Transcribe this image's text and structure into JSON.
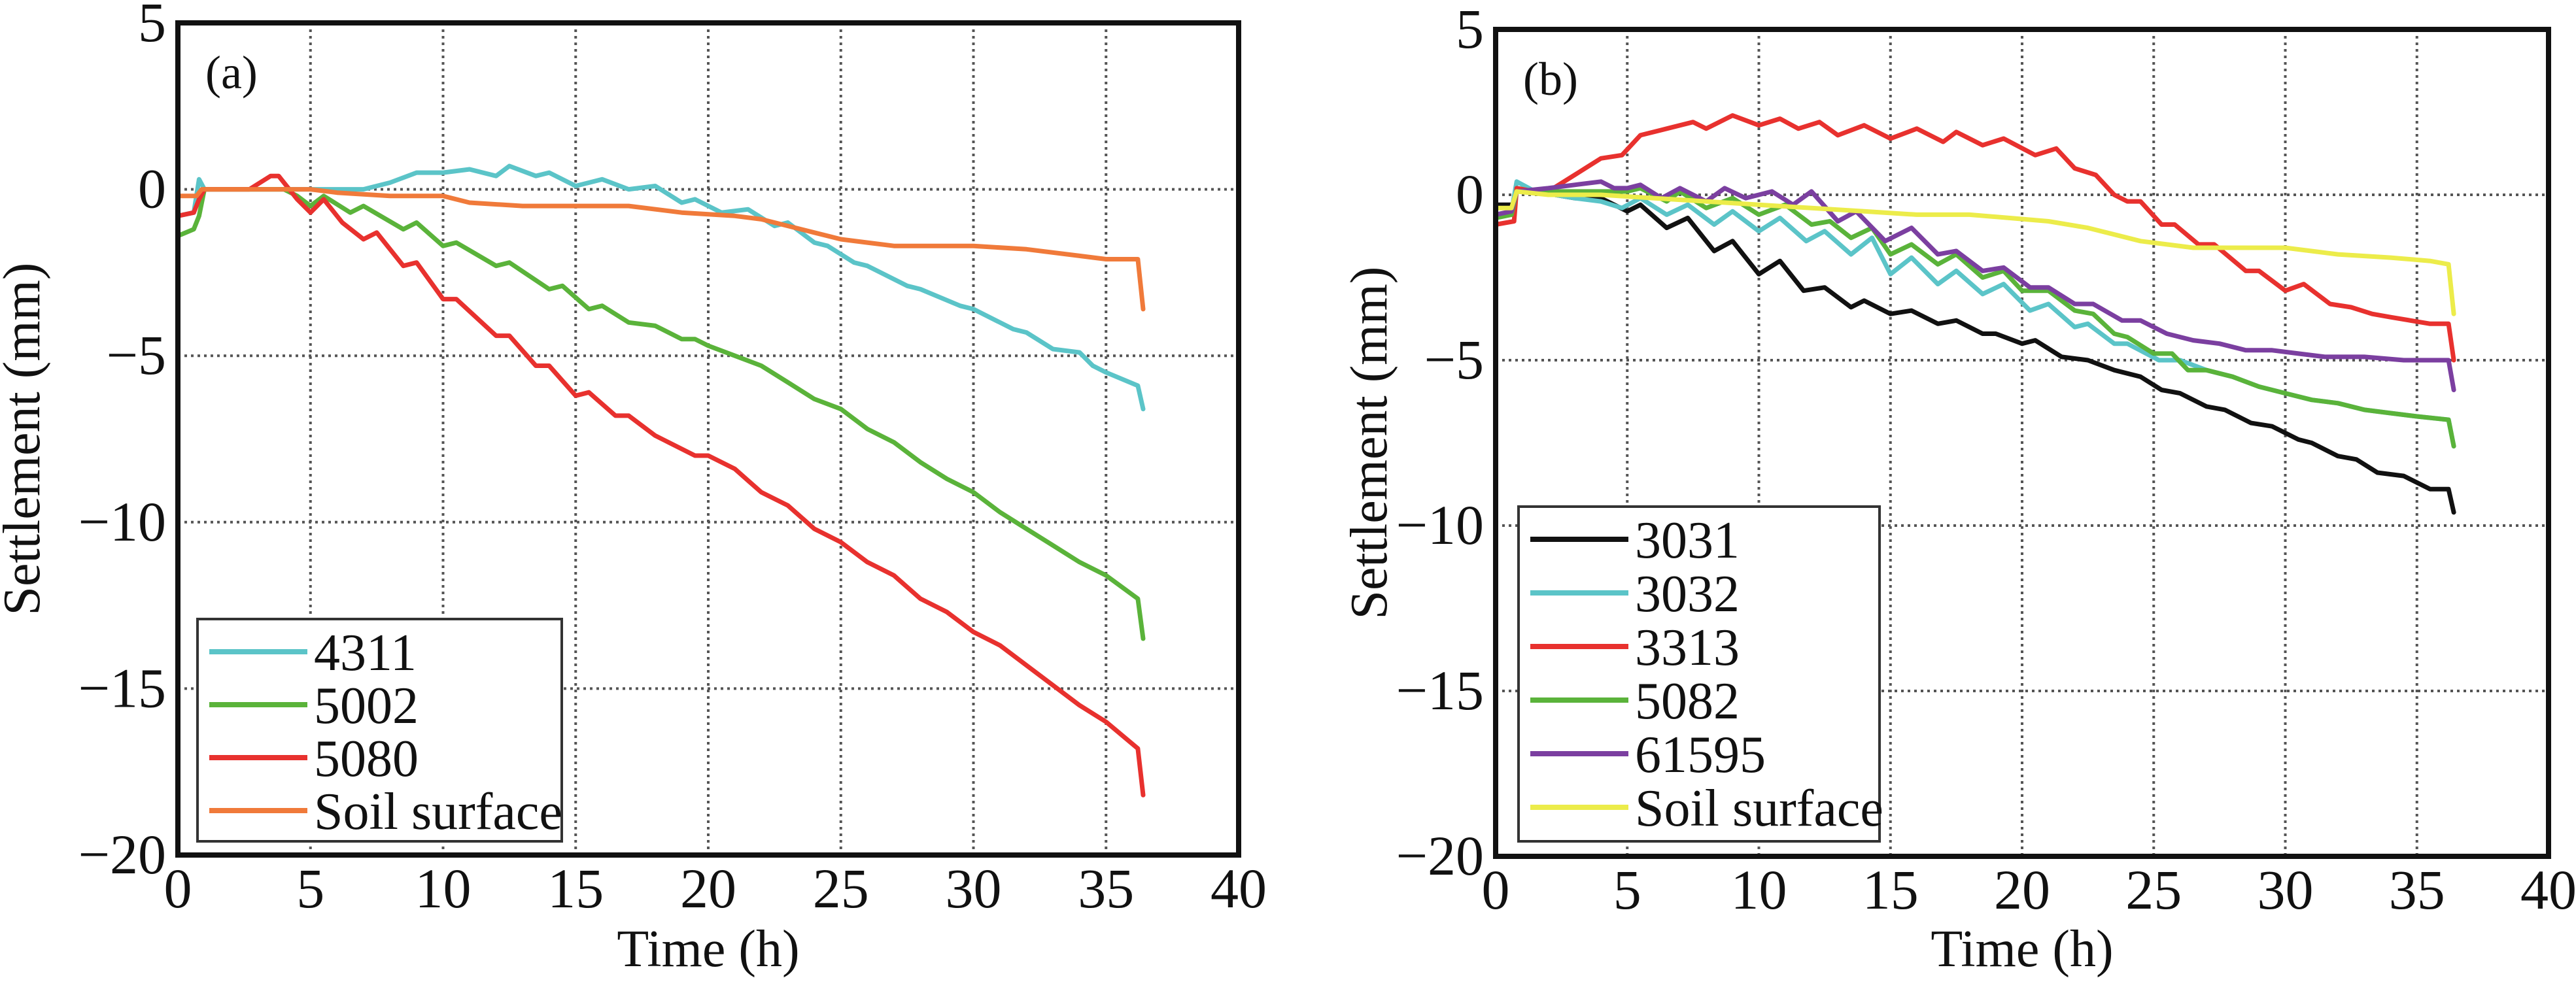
{
  "chart_data": [
    {
      "type": "line",
      "panel_label": "(a)",
      "title": "",
      "xlabel": "Time (h)",
      "ylabel": "Settlement (mm)",
      "xlim": [
        0,
        40
      ],
      "ylim": [
        -20,
        5
      ],
      "xticks": [
        0,
        5,
        10,
        15,
        20,
        25,
        30,
        35,
        40
      ],
      "yticks": [
        5,
        0,
        -5,
        -10,
        -15,
        -20
      ],
      "ytick_labels": [
        "5",
        "0",
        "−5",
        "−10",
        "−15",
        "−20"
      ],
      "grid": true,
      "legend_position": "bottom-left",
      "series": [
        {
          "name": "4311",
          "color": "#5bc4c8",
          "x": [
            0,
            0.6,
            0.8,
            1,
            4,
            7,
            8,
            9,
            10,
            11,
            12,
            12.5,
            13.5,
            14,
            15,
            16,
            17,
            18,
            19,
            19.5,
            20.5,
            21.5,
            22.5,
            23,
            24,
            24.5,
            25.5,
            26,
            27.5,
            28,
            29.5,
            30,
            31.5,
            32,
            33,
            34,
            34.5,
            35,
            36.2,
            36.4
          ],
          "y": [
            -0.8,
            -0.7,
            0.3,
            0,
            0,
            0,
            0.2,
            0.5,
            0.5,
            0.6,
            0.4,
            0.7,
            0.4,
            0.5,
            0.1,
            0.3,
            0,
            0.1,
            -0.4,
            -0.3,
            -0.7,
            -0.6,
            -1.1,
            -1.0,
            -1.6,
            -1.7,
            -2.2,
            -2.3,
            -2.9,
            -3.0,
            -3.5,
            -3.6,
            -4.2,
            -4.3,
            -4.8,
            -4.9,
            -5.3,
            -5.5,
            -5.9,
            -6.6
          ]
        },
        {
          "name": "5002",
          "color": "#5ab33a",
          "x": [
            0,
            0.6,
            0.8,
            1,
            4,
            4.5,
            5,
            5.5,
            6.5,
            7,
            8.5,
            9,
            10,
            10.5,
            12,
            12.5,
            14,
            14.5,
            15.5,
            16,
            17,
            18,
            19,
            19.5,
            20,
            21,
            22,
            23,
            24,
            25,
            26,
            27,
            28,
            29,
            30,
            31,
            32,
            33,
            34,
            35,
            36.2,
            36.4
          ],
          "y": [
            -1.4,
            -1.2,
            -0.8,
            0,
            0,
            -0.2,
            -0.5,
            -0.2,
            -0.7,
            -0.5,
            -1.2,
            -1.0,
            -1.7,
            -1.6,
            -2.3,
            -2.2,
            -3.0,
            -2.9,
            -3.6,
            -3.5,
            -4.0,
            -4.1,
            -4.5,
            -4.5,
            -4.7,
            -5.0,
            -5.3,
            -5.8,
            -6.3,
            -6.6,
            -7.2,
            -7.6,
            -8.2,
            -8.7,
            -9.1,
            -9.7,
            -10.2,
            -10.7,
            -11.2,
            -11.6,
            -12.3,
            -13.5
          ]
        },
        {
          "name": "5080",
          "color": "#e8312e",
          "x": [
            0,
            0.6,
            0.8,
            1,
            2.7,
            3.5,
            3.8,
            4.5,
            5,
            5.5,
            6.2,
            7,
            7.5,
            8.5,
            9,
            10,
            10.5,
            12,
            12.5,
            13.5,
            14,
            15,
            15.5,
            16.5,
            17,
            18,
            18.5,
            19.5,
            20,
            21,
            22,
            23,
            24,
            25,
            26,
            27,
            28,
            29,
            30,
            31,
            32,
            33,
            34,
            35,
            36.2,
            36.4
          ],
          "y": [
            -0.8,
            -0.7,
            -0.3,
            0,
            0,
            0.4,
            0.4,
            -0.3,
            -0.7,
            -0.3,
            -1.0,
            -1.5,
            -1.3,
            -2.3,
            -2.2,
            -3.3,
            -3.3,
            -4.4,
            -4.4,
            -5.3,
            -5.3,
            -6.2,
            -6.1,
            -6.8,
            -6.8,
            -7.4,
            -7.6,
            -8.0,
            -8.0,
            -8.4,
            -9.1,
            -9.5,
            -10.2,
            -10.6,
            -11.2,
            -11.6,
            -12.3,
            -12.7,
            -13.3,
            -13.7,
            -14.3,
            -14.9,
            -15.5,
            -16.0,
            -16.8,
            -18.2
          ]
        },
        {
          "name": "Soil surface",
          "color": "#f07a3a",
          "x": [
            0,
            0.7,
            0.9,
            5,
            6,
            8,
            10,
            11,
            13,
            15,
            17,
            19,
            21,
            22,
            23,
            24,
            25,
            26,
            27,
            28,
            30,
            32,
            34,
            35,
            36.2,
            36.4
          ],
          "y": [
            -0.2,
            -0.2,
            0,
            0,
            -0.1,
            -0.2,
            -0.2,
            -0.4,
            -0.5,
            -0.5,
            -0.5,
            -0.7,
            -0.8,
            -0.9,
            -1.1,
            -1.3,
            -1.5,
            -1.6,
            -1.7,
            -1.7,
            -1.7,
            -1.8,
            -2.0,
            -2.1,
            -2.1,
            -3.6
          ]
        }
      ]
    },
    {
      "type": "line",
      "panel_label": "(b)",
      "title": "",
      "xlabel": "Time (h)",
      "ylabel": "Settlement (mm)",
      "xlim": [
        0,
        40
      ],
      "ylim": [
        -20,
        5
      ],
      "xticks": [
        0,
        5,
        10,
        15,
        20,
        25,
        30,
        35,
        40
      ],
      "yticks": [
        5,
        0,
        -5,
        -10,
        -15,
        -20
      ],
      "ytick_labels": [
        "5",
        "0",
        "−5",
        "−10",
        "−15",
        "−20"
      ],
      "grid": true,
      "legend_position": "bottom-left",
      "series": [
        {
          "name": "3031",
          "color": "#111111",
          "x": [
            0,
            0.7,
            0.8,
            1.5,
            3,
            4,
            5,
            5.5,
            6.5,
            7.3,
            8.3,
            9,
            10,
            10.8,
            11.7,
            12.5,
            13.5,
            14,
            15,
            15.8,
            16.8,
            17.5,
            18.5,
            19,
            20,
            20.5,
            21.5,
            22.5,
            23.5,
            24.5,
            25.3,
            26,
            27,
            27.7,
            28.7,
            29.5,
            30.5,
            31,
            32,
            32.7,
            33.5,
            34.5,
            35.5,
            36.2,
            36.4
          ],
          "y": [
            -0.3,
            -0.3,
            0.2,
            0.1,
            -0.1,
            -0.1,
            -0.5,
            -0.3,
            -1.0,
            -0.7,
            -1.7,
            -1.4,
            -2.4,
            -2.0,
            -2.9,
            -2.8,
            -3.4,
            -3.2,
            -3.6,
            -3.5,
            -3.9,
            -3.8,
            -4.2,
            -4.2,
            -4.5,
            -4.4,
            -4.9,
            -5.0,
            -5.3,
            -5.5,
            -5.9,
            -6.0,
            -6.4,
            -6.5,
            -6.9,
            -7.0,
            -7.4,
            -7.5,
            -7.9,
            -8.0,
            -8.4,
            -8.5,
            -8.9,
            -8.9,
            -9.6
          ]
        },
        {
          "name": "3032",
          "color": "#5bc4c8",
          "x": [
            0,
            0.6,
            0.8,
            1.5,
            3,
            4,
            4.8,
            5.5,
            6.5,
            7.3,
            8.3,
            9,
            10,
            10.8,
            11.8,
            12.5,
            13.5,
            14.3,
            15,
            15.8,
            16.8,
            17.5,
            18.5,
            19.3,
            20.3,
            21,
            22,
            22.5,
            23.5,
            24,
            25.2,
            26,
            27,
            28,
            29,
            30,
            31,
            32,
            33,
            34,
            35,
            36.2,
            36.4
          ],
          "y": [
            -0.6,
            -0.5,
            0.4,
            0.1,
            -0.1,
            -0.2,
            -0.4,
            -0.1,
            -0.6,
            -0.3,
            -0.9,
            -0.5,
            -1.1,
            -0.7,
            -1.4,
            -1.1,
            -1.8,
            -1.3,
            -2.4,
            -1.9,
            -2.7,
            -2.3,
            -3.0,
            -2.7,
            -3.5,
            -3.3,
            -4.0,
            -3.9,
            -4.5,
            -4.5,
            -5.0,
            -5.0,
            -5.3,
            -5.5,
            -5.8,
            -6.0,
            -6.2,
            -6.3,
            -6.5,
            -6.6,
            -6.7,
            -6.8,
            -7.6
          ]
        },
        {
          "name": "3313",
          "color": "#e8312e",
          "x": [
            0,
            0.7,
            0.8,
            1.5,
            2,
            3,
            4,
            4.8,
            5.5,
            6.5,
            7.5,
            8,
            9,
            10,
            10.8,
            11.5,
            12.3,
            13,
            14,
            15,
            16,
            17,
            17.5,
            18.5,
            19.3,
            20.5,
            21.3,
            22,
            22.8,
            23.5,
            24,
            24.5,
            25.3,
            25.8,
            26.7,
            27.3,
            28.5,
            29,
            30,
            30.7,
            31.7,
            32.5,
            33.3,
            34,
            35.5,
            36.2,
            36.4
          ],
          "y": [
            -0.9,
            -0.8,
            0.2,
            0.1,
            0.1,
            0.6,
            1.1,
            1.2,
            1.8,
            2.0,
            2.2,
            2.0,
            2.4,
            2.1,
            2.3,
            2.0,
            2.2,
            1.8,
            2.1,
            1.7,
            2.0,
            1.6,
            1.9,
            1.5,
            1.7,
            1.2,
            1.4,
            0.8,
            0.6,
            0,
            -0.2,
            -0.2,
            -0.9,
            -0.9,
            -1.5,
            -1.5,
            -2.3,
            -2.3,
            -2.9,
            -2.7,
            -3.3,
            -3.4,
            -3.6,
            -3.7,
            -3.9,
            -3.9,
            -5.0
          ]
        },
        {
          "name": "5082",
          "color": "#5ab33a",
          "x": [
            0,
            0.6,
            0.8,
            2,
            4,
            5,
            5.5,
            6.5,
            7,
            8,
            9,
            10,
            11,
            12,
            12.7,
            13.5,
            14.3,
            15,
            15.8,
            16.8,
            17.5,
            18.5,
            19.3,
            20,
            21,
            22,
            22.7,
            23.5,
            24,
            25,
            25.7,
            26.3,
            27,
            28,
            29,
            30,
            31,
            32,
            33,
            34,
            35,
            36.2,
            36.4
          ],
          "y": [
            -0.7,
            -0.6,
            0.1,
            0.1,
            0.1,
            0.1,
            0.2,
            -0.2,
            0.1,
            -0.4,
            -0.1,
            -0.6,
            -0.3,
            -0.9,
            -0.8,
            -1.3,
            -1.0,
            -1.8,
            -1.5,
            -2.1,
            -1.8,
            -2.5,
            -2.3,
            -2.9,
            -2.9,
            -3.5,
            -3.6,
            -4.2,
            -4.3,
            -4.8,
            -4.8,
            -5.3,
            -5.3,
            -5.5,
            -5.8,
            -6.0,
            -6.2,
            -6.3,
            -6.5,
            -6.6,
            -6.7,
            -6.8,
            -7.6
          ]
        },
        {
          "name": "61595",
          "color": "#7b3fa0",
          "x": [
            0,
            0.6,
            0.8,
            2,
            3,
            4,
            4.5,
            5,
            5.5,
            6.3,
            7,
            8,
            8.7,
            9.5,
            10.5,
            11.3,
            12,
            13,
            13.7,
            14.8,
            15.8,
            16.8,
            17.5,
            18.5,
            19.3,
            20.3,
            21,
            22,
            22.7,
            23.8,
            24.5,
            25.5,
            26.5,
            27.5,
            28.5,
            29.5,
            30.5,
            31.5,
            33,
            34.5,
            36.2,
            36.4
          ],
          "y": [
            -0.6,
            -0.5,
            0.1,
            0.2,
            0.3,
            0.4,
            0.2,
            0.2,
            0.3,
            -0.1,
            0.2,
            -0.2,
            0.2,
            -0.1,
            0.1,
            -0.3,
            0.1,
            -0.8,
            -0.5,
            -1.4,
            -1.0,
            -1.8,
            -1.7,
            -2.3,
            -2.2,
            -2.8,
            -2.8,
            -3.3,
            -3.3,
            -3.8,
            -3.8,
            -4.2,
            -4.4,
            -4.5,
            -4.7,
            -4.7,
            -4.8,
            -4.9,
            -4.9,
            -5.0,
            -5.0,
            -5.9
          ]
        },
        {
          "name": "Soil surface",
          "color": "#ecec4a",
          "x": [
            0,
            0.6,
            0.8,
            2,
            4,
            6,
            8,
            10,
            12,
            14,
            16,
            18,
            19.5,
            21,
            22.5,
            23.5,
            24.5,
            25.5,
            26.5,
            28,
            30,
            32,
            34,
            35.5,
            36.2,
            36.4
          ],
          "y": [
            -0.4,
            -0.4,
            0.1,
            0,
            0,
            -0.1,
            -0.2,
            -0.3,
            -0.4,
            -0.5,
            -0.6,
            -0.6,
            -0.7,
            -0.8,
            -1.0,
            -1.2,
            -1.4,
            -1.5,
            -1.6,
            -1.6,
            -1.6,
            -1.8,
            -1.9,
            -2.0,
            -2.1,
            -3.6
          ]
        }
      ]
    }
  ]
}
